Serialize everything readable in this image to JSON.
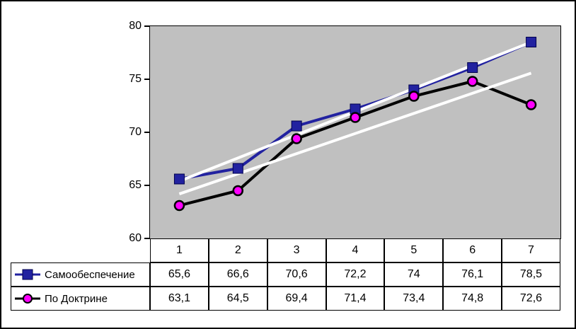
{
  "chart": {
    "y_axis_labels": [
      "80",
      "75",
      "70",
      "65",
      "60"
    ]
  },
  "chart_data": {
    "type": "line",
    "title": "",
    "categories": [
      "1",
      "2",
      "3",
      "4",
      "5",
      "6",
      "7"
    ],
    "series": [
      {
        "name": "Самообеспечение",
        "values": [
          65.6,
          66.6,
          70.6,
          72.2,
          74,
          76.1,
          78.5
        ],
        "color": "#2222a0",
        "marker": "square",
        "marker_color": "#2222a0",
        "trendline": true
      },
      {
        "name": "По Доктрине",
        "values": [
          63.1,
          64.5,
          69.4,
          71.4,
          73.4,
          74.8,
          72.6
        ],
        "color": "#000000",
        "marker": "circle",
        "marker_color": "#ff00ff",
        "trendline": true
      }
    ],
    "ylim": [
      60,
      80
    ],
    "ytick_step": 5,
    "grid": false,
    "plot_background": "#c0c0c0",
    "trendline_color": "#ffffff",
    "legend_position": "table-left"
  },
  "table": {
    "display_values": [
      [
        "65,6",
        "66,6",
        "70,6",
        "72,2",
        "74",
        "76,1",
        "78,5"
      ],
      [
        "63,1",
        "64,5",
        "69,4",
        "71,4",
        "73,4",
        "74,8",
        "72,6"
      ]
    ]
  }
}
